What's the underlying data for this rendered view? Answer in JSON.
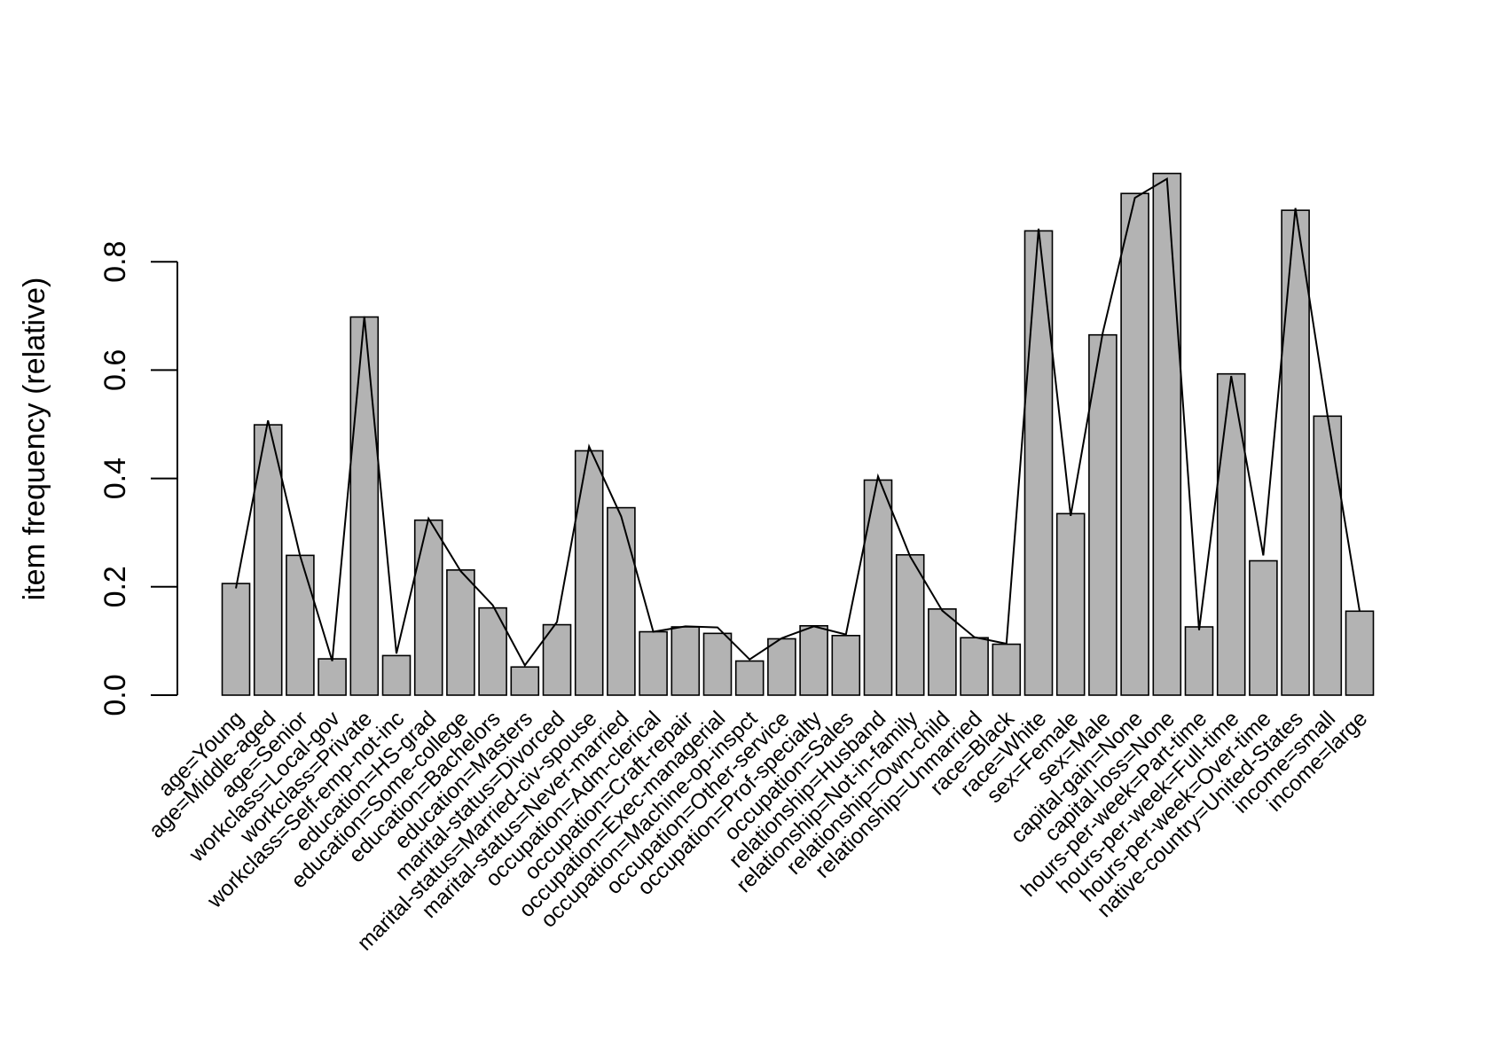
{
  "chart_data": {
    "type": "bar",
    "title": "",
    "xlabel": "",
    "ylabel": "item frequency (relative)",
    "ylim": [
      0,
      1.0
    ],
    "yticks": [
      0.0,
      0.2,
      0.4,
      0.6,
      0.8
    ],
    "ytick_labels": [
      "0.0",
      "0.2",
      "0.4",
      "0.6",
      "0.8"
    ],
    "grid": false,
    "legend": "none",
    "bar_color": "#b3b3b3",
    "line_color": "#000000",
    "categories": [
      "age=Young",
      "age=Middle-aged",
      "age=Senior",
      "workclass=Local-gov",
      "workclass=Private",
      "workclass=Self-emp-not-inc",
      "education=HS-grad",
      "education=Some-college",
      "education=Bachelors",
      "education=Masters",
      "marital-status=Divorced",
      "marital-status=Married-civ-spouse",
      "marital-status=Never-married",
      "occupation=Adm-clerical",
      "occupation=Craft-repair",
      "occupation=Exec-managerial",
      "occupation=Machine-op-inspct",
      "occupation=Other-service",
      "occupation=Prof-specialty",
      "occupation=Sales",
      "relationship=Husband",
      "relationship=Not-in-family",
      "relationship=Own-child",
      "relationship=Unmarried",
      "race=Black",
      "race=White",
      "sex=Female",
      "sex=Male",
      "capital-gain=None",
      "capital-loss=None",
      "hours-per-week=Part-time",
      "hours-per-week=Full-time",
      "hours-per-week=Over-time",
      "native-country=United-States",
      "income=small",
      "income=large"
    ],
    "series": [
      {
        "values": [
          0.206,
          0.499,
          0.258,
          0.067,
          0.698,
          0.073,
          0.323,
          0.231,
          0.161,
          0.052,
          0.13,
          0.451,
          0.346,
          0.117,
          0.126,
          0.114,
          0.063,
          0.104,
          0.128,
          0.11,
          0.397,
          0.259,
          0.159,
          0.106,
          0.094,
          0.857,
          0.335,
          0.665,
          0.926,
          0.963,
          0.126,
          0.593,
          0.248,
          0.895,
          0.515,
          0.155
        ]
      },
      {
        "values": [
          0.197,
          0.507,
          0.257,
          0.063,
          0.699,
          0.077,
          0.326,
          0.229,
          0.166,
          0.055,
          0.135,
          0.459,
          0.33,
          0.117,
          0.127,
          0.125,
          0.066,
          0.105,
          0.127,
          0.112,
          0.404,
          0.256,
          0.156,
          0.107,
          0.095,
          0.861,
          0.331,
          0.669,
          0.918,
          0.953,
          0.12,
          0.589,
          0.258,
          0.899,
          0.516,
          0.155
        ]
      }
    ]
  }
}
